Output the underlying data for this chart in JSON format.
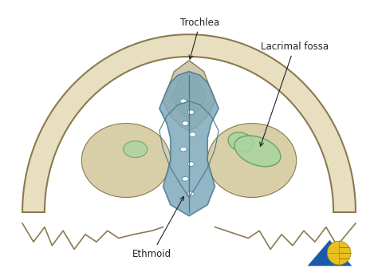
{
  "figure_bg": "#ffffff",
  "skull_fill": "#e8dfc0",
  "skull_edge": "#8a7a50",
  "skull_inner_fill": "#d8cfa8",
  "ethmoid_fill": "#7faabb",
  "ethmoid_edge": "#4a7a8a",
  "lacrimal_fill": "#a8d4a0",
  "lacrimal_edge": "#5a9a50",
  "trochlea_fill": "#d0c8b0",
  "trochlea_edge": "#8a7a50",
  "label_trochlea": "Trochlea",
  "label_lacrimal": "Lacrimal fossa",
  "label_ethmoid": "Ethmoid",
  "logo_triangle_color": "#1a5aaa",
  "logo_globe_color": "#e8c020",
  "logo_globe_line_color": "#a08000",
  "annotation_color": "#222222",
  "annotation_fontsize": 8.5,
  "xlim": [
    0,
    10
  ],
  "ylim": [
    0,
    7.5
  ]
}
